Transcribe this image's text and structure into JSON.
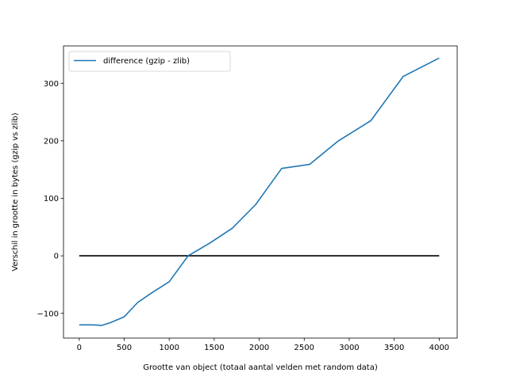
{
  "chart_data": {
    "type": "line",
    "title": "",
    "xlabel": "Grootte van object (totaal aantal velden met random data)",
    "ylabel": "Verschil in grootte in bytes (gzip vs zlib)",
    "xlim": [
      -175,
      4200
    ],
    "ylim": [
      -143,
      365
    ],
    "xticks": [
      0,
      500,
      1000,
      1500,
      2000,
      2500,
      3000,
      3500,
      4000
    ],
    "xtick_labels": [
      "0",
      "500",
      "1000",
      "1500",
      "2000",
      "2500",
      "3000",
      "3500",
      "4000"
    ],
    "yticks": [
      -100,
      0,
      100,
      200,
      300
    ],
    "ytick_labels": [
      "−100",
      "0",
      "100",
      "200",
      "300"
    ],
    "grid": false,
    "legend": "top-left",
    "series": [
      {
        "name": "difference (gzip - zlib)",
        "color": "#1f77b4",
        "x": [
          0,
          150,
          250,
          350,
          500,
          650,
          800,
          1000,
          1210,
          1450,
          1700,
          1960,
          2250,
          2560,
          2880,
          3240,
          3600,
          4000
        ],
        "values": [
          -120,
          -120,
          -121,
          -116,
          -106,
          -81,
          -65,
          -45,
          0,
          22,
          48,
          89,
          152,
          159,
          200,
          235,
          312,
          344
        ]
      },
      {
        "x": [
          0,
          4000
        ],
        "values": [
          0,
          0
        ],
        "color": "#000000"
      }
    ]
  }
}
